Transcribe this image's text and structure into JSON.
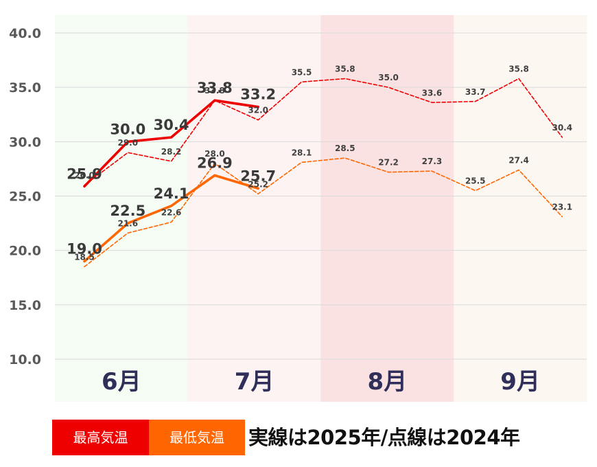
{
  "chart_data": {
    "type": "line",
    "ylim": [
      10,
      40
    ],
    "y_ticks": [
      "10.0",
      "15.0",
      "20.0",
      "25.0",
      "30.0",
      "35.0",
      "40.0"
    ],
    "month_bands": [
      {
        "label": "6月",
        "color": "#f5fcf4"
      },
      {
        "label": "7月",
        "color": "#fdf3f3"
      },
      {
        "label": "8月",
        "color": "#fbe2e2"
      },
      {
        "label": "9月",
        "color": "#fdf7f2"
      }
    ],
    "grid": true,
    "series": [
      {
        "name": "最高気温",
        "year": "2025",
        "style": "solid",
        "color": "#ee0000",
        "values": [
          25.9,
          30.0,
          30.4,
          33.8,
          33.2
        ],
        "labels": [
          "25.9",
          "30.0",
          "30.4",
          "33.8",
          "33.2"
        ]
      },
      {
        "name": "最低気温",
        "year": "2025",
        "style": "solid",
        "color": "#ff6600",
        "values": [
          19.0,
          22.5,
          24.1,
          26.9,
          25.7
        ],
        "labels": [
          "19.0",
          "22.5",
          "24.1",
          "26.9",
          "25.7"
        ]
      },
      {
        "name": "最高気温",
        "year": "2024",
        "style": "dashed",
        "color": "#ee0000",
        "values": [
          26.0,
          29.0,
          28.2,
          33.8,
          32.0,
          35.5,
          35.8,
          35.0,
          33.6,
          33.7,
          35.8,
          30.4
        ],
        "labels": [
          "26.0",
          "29.0",
          "28.2",
          "33.8",
          "32.0",
          "35.5",
          "35.8",
          "35.0",
          "33.6",
          "33.7",
          "35.8",
          "30.4"
        ]
      },
      {
        "name": "最低気温",
        "year": "2024",
        "style": "dashed",
        "color": "#ff6600",
        "values": [
          18.5,
          21.6,
          22.6,
          28.0,
          25.2,
          28.1,
          28.5,
          27.2,
          27.3,
          25.5,
          27.4,
          23.1
        ],
        "labels": [
          "18.5",
          "21.6",
          "22.6",
          "28.0",
          "25.2",
          "28.1",
          "28.5",
          "27.2",
          "27.3",
          "25.5",
          "27.4",
          "23.1"
        ]
      }
    ]
  },
  "legend": {
    "max_label": "最高気温",
    "min_label": "最低気温",
    "note": "実線は2025年/点線は2024年",
    "max_color": "#ee0000",
    "min_color": "#ff6600"
  }
}
